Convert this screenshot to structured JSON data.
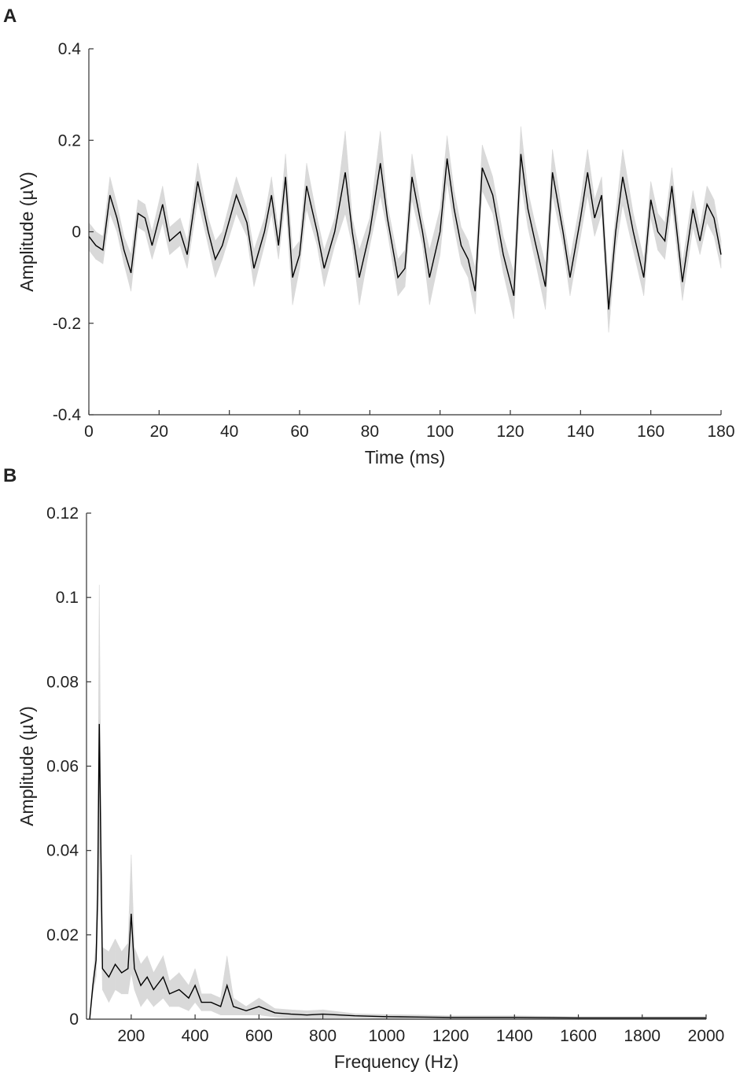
{
  "chart_data": [
    {
      "type": "line",
      "panel_label": "A",
      "x_label": "Time (ms)",
      "y_label": "Amplitude (µV)",
      "xlim": [
        0,
        180
      ],
      "xticks": [
        0,
        20,
        40,
        60,
        80,
        100,
        120,
        140,
        160,
        180
      ],
      "ylim": [
        -0.4,
        0.4
      ],
      "yticks": [
        -0.4,
        -0.2,
        0,
        0.2,
        0.4
      ],
      "x": [
        0,
        2,
        4,
        6,
        8,
        10,
        12,
        14,
        16,
        18,
        21,
        23,
        26,
        28,
        31,
        34,
        36,
        38,
        42,
        45,
        47,
        50,
        52,
        54,
        56,
        58,
        60,
        62,
        65,
        67,
        70,
        73,
        75,
        77,
        80,
        83,
        85,
        88,
        90,
        92,
        95,
        97,
        100,
        102,
        104,
        106,
        108,
        110,
        112,
        115,
        118,
        121,
        123,
        125,
        127,
        130,
        132,
        135,
        137,
        140,
        142,
        144,
        146,
        148,
        150,
        152,
        155,
        158,
        160,
        162,
        164,
        166,
        169,
        172,
        174,
        176,
        178,
        180
      ],
      "series": [
        {
          "color": "#000000",
          "band_color": "#d9d9d9",
          "values": [
            -0.01,
            -0.03,
            -0.04,
            0.08,
            0.03,
            -0.04,
            -0.09,
            0.04,
            0.03,
            -0.03,
            0.06,
            -0.02,
            0.0,
            -0.05,
            0.11,
            0.0,
            -0.06,
            -0.03,
            0.08,
            0.02,
            -0.08,
            0.0,
            0.08,
            -0.03,
            0.12,
            -0.1,
            -0.05,
            0.1,
            0.0,
            -0.08,
            0.0,
            0.13,
            0.0,
            -0.1,
            0.0,
            0.15,
            0.03,
            -0.1,
            -0.08,
            0.12,
            0.0,
            -0.1,
            0.0,
            0.16,
            0.05,
            -0.03,
            -0.06,
            -0.13,
            0.14,
            0.08,
            -0.05,
            -0.14,
            0.17,
            0.05,
            -0.02,
            -0.12,
            0.13,
            0.0,
            -0.1,
            0.03,
            0.13,
            0.03,
            0.08,
            -0.17,
            0.0,
            0.12,
            0.0,
            -0.1,
            0.07,
            0.0,
            -0.02,
            0.1,
            -0.11,
            0.05,
            -0.02,
            0.06,
            0.03,
            -0.05
          ],
          "errors": [
            0.03,
            0.03,
            0.03,
            0.04,
            0.03,
            0.03,
            0.04,
            0.03,
            0.03,
            0.03,
            0.04,
            0.03,
            0.03,
            0.03,
            0.04,
            0.03,
            0.04,
            0.03,
            0.04,
            0.03,
            0.04,
            0.03,
            0.04,
            0.03,
            0.05,
            0.06,
            0.03,
            0.05,
            0.03,
            0.04,
            0.03,
            0.09,
            0.03,
            0.06,
            0.03,
            0.07,
            0.03,
            0.04,
            0.04,
            0.05,
            0.03,
            0.06,
            0.05,
            0.05,
            0.04,
            0.04,
            0.04,
            0.05,
            0.05,
            0.04,
            0.04,
            0.05,
            0.06,
            0.04,
            0.04,
            0.05,
            0.05,
            0.03,
            0.04,
            0.04,
            0.05,
            0.04,
            0.04,
            0.05,
            0.04,
            0.06,
            0.04,
            0.04,
            0.04,
            0.04,
            0.04,
            0.04,
            0.04,
            0.04,
            0.03,
            0.04,
            0.04,
            0.03
          ]
        }
      ]
    },
    {
      "type": "line",
      "panel_label": "B",
      "x_label": "Frequency (Hz)",
      "y_label": "Amplitude (µV)",
      "xlim": [
        60,
        2000
      ],
      "xticks": [
        200,
        400,
        600,
        800,
        1000,
        1200,
        1400,
        1600,
        1800,
        2000
      ],
      "ylim": [
        0,
        0.12
      ],
      "yticks": [
        0,
        0.02,
        0.04,
        0.06,
        0.08,
        0.1,
        0.12
      ],
      "x": [
        70,
        80,
        90,
        95,
        100,
        105,
        110,
        130,
        150,
        170,
        190,
        200,
        210,
        230,
        250,
        270,
        300,
        320,
        350,
        380,
        400,
        420,
        450,
        480,
        500,
        520,
        560,
        600,
        650,
        700,
        750,
        800,
        900,
        1000,
        1100,
        1200,
        1400,
        1600,
        1800,
        2000
      ],
      "series": [
        {
          "color": "#000000",
          "band_color": "#d9d9d9",
          "values": [
            0.0,
            0.008,
            0.014,
            0.03,
            0.07,
            0.04,
            0.012,
            0.01,
            0.013,
            0.011,
            0.012,
            0.025,
            0.012,
            0.008,
            0.01,
            0.007,
            0.01,
            0.006,
            0.007,
            0.005,
            0.008,
            0.004,
            0.004,
            0.003,
            0.008,
            0.003,
            0.002,
            0.003,
            0.0015,
            0.0012,
            0.001,
            0.0012,
            0.0008,
            0.0006,
            0.0005,
            0.0004,
            0.0004,
            0.0003,
            0.0003,
            0.0003
          ],
          "errors": [
            0,
            0.002,
            0.004,
            0.01,
            0.033,
            0.015,
            0.005,
            0.006,
            0.006,
            0.005,
            0.006,
            0.014,
            0.005,
            0.005,
            0.005,
            0.004,
            0.005,
            0.003,
            0.004,
            0.003,
            0.004,
            0.002,
            0.002,
            0.002,
            0.007,
            0.002,
            0.001,
            0.002,
            0.001,
            0.001,
            0.001,
            0.001,
            0.0005,
            0.0005,
            0.0005,
            0.0004,
            0.0004,
            0.0003,
            0.0003,
            0.0003
          ]
        }
      ]
    }
  ]
}
